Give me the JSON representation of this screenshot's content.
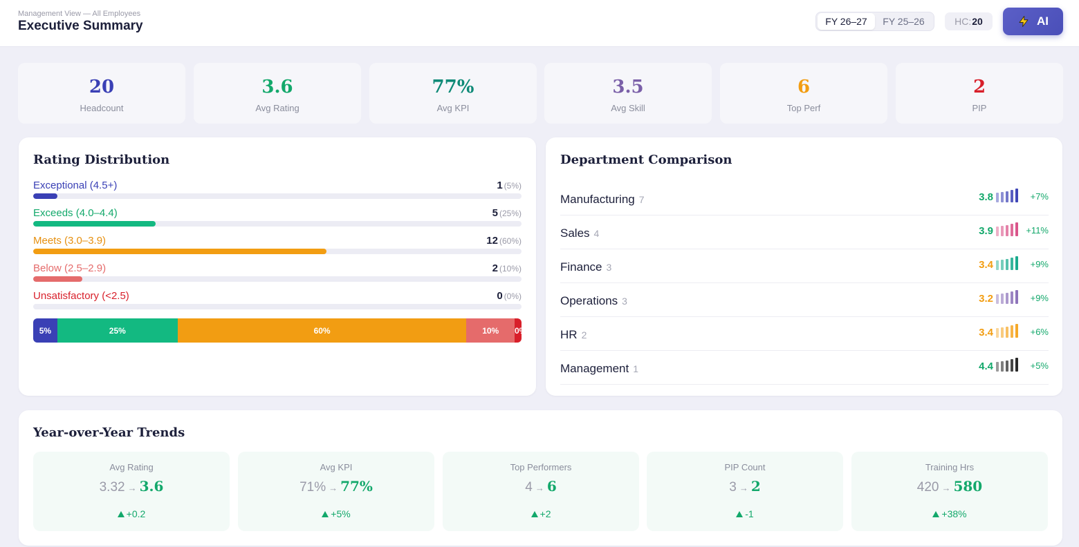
{
  "header": {
    "breadcrumb": "Management View — All Employees",
    "title": "Executive Summary",
    "fy_options": [
      "FY 26–27",
      "FY 25–26"
    ],
    "fy_selected": "FY 26–27",
    "hc_label": "HC:",
    "hc_value": "20",
    "ai_label": "AI",
    "ai_icon": "lightning-bolt-icon"
  },
  "kpis": [
    {
      "value": "20",
      "label": "Headcount",
      "color": "#3a40b5"
    },
    {
      "value": "3.6",
      "label": "Avg Rating",
      "color": "#13a86b"
    },
    {
      "value": "77%",
      "label": "Avg KPI",
      "color": "#0f8a77"
    },
    {
      "value": "3.5",
      "label": "Avg Skill",
      "color": "#7a5fa8"
    },
    {
      "value": "6",
      "label": "Top Perf",
      "color": "#f29d12"
    },
    {
      "value": "2",
      "label": "PIP",
      "color": "#d81f2a"
    }
  ],
  "rating_distribution": {
    "title": "Rating Distribution",
    "rows": [
      {
        "label": "Exceptional (4.5+)",
        "count": "1",
        "pct": "(5%)",
        "share": 0.05,
        "color": "#3a40b5"
      },
      {
        "label": "Exceeds (4.0–4.4)",
        "count": "5",
        "pct": "(25%)",
        "share": 0.25,
        "color": "#13b981"
      },
      {
        "label": "Meets (3.0–3.9)",
        "count": "12",
        "pct": "(60%)",
        "share": 0.6,
        "color": "#f29d12"
      },
      {
        "label": "Below (2.5–2.9)",
        "count": "2",
        "pct": "(10%)",
        "share": 0.1,
        "color": "#e56b6b"
      },
      {
        "label": "Unsatisfactory (<2.5)",
        "count": "0",
        "pct": "(0%)",
        "share": 0.0,
        "color": "#d81f2a"
      }
    ],
    "stack_labels": [
      "5%",
      "25%",
      "60%",
      "10%",
      "0%"
    ]
  },
  "department_comparison": {
    "title": "Department Comparison",
    "rows": [
      {
        "name": "Manufacturing",
        "count": "7",
        "score": "3.8",
        "score_color": "#13a86b",
        "change": "+7%",
        "spark_color": "#3a40b5"
      },
      {
        "name": "Sales",
        "count": "4",
        "score": "3.9",
        "score_color": "#13a86b",
        "change": "+11%",
        "spark_color": "#d94f86"
      },
      {
        "name": "Finance",
        "count": "3",
        "score": "3.4",
        "score_color": "#f29d12",
        "change": "+9%",
        "spark_color": "#13a88a"
      },
      {
        "name": "Operations",
        "count": "3",
        "score": "3.2",
        "score_color": "#f29d12",
        "change": "+9%",
        "spark_color": "#8a6fb8"
      },
      {
        "name": "HR",
        "count": "2",
        "score": "3.4",
        "score_color": "#f29d12",
        "change": "+6%",
        "spark_color": "#f5a623"
      },
      {
        "name": "Management",
        "count": "1",
        "score": "4.4",
        "score_color": "#13a86b",
        "change": "+5%",
        "spark_color": "#222222"
      }
    ]
  },
  "yoy_trends": {
    "title": "Year-over-Year Trends",
    "arrow": "→",
    "items": [
      {
        "label": "Avg Rating",
        "prev": "3.32",
        "curr": "3.6",
        "delta": "+0.2"
      },
      {
        "label": "Avg KPI",
        "prev": "71%",
        "curr": "77%",
        "delta": "+5%"
      },
      {
        "label": "Top Performers",
        "prev": "4",
        "curr": "6",
        "delta": "+2"
      },
      {
        "label": "PIP Count",
        "prev": "3",
        "curr": "2",
        "delta": "-1"
      },
      {
        "label": "Training Hrs",
        "prev": "420",
        "curr": "580",
        "delta": "+38%"
      }
    ]
  }
}
